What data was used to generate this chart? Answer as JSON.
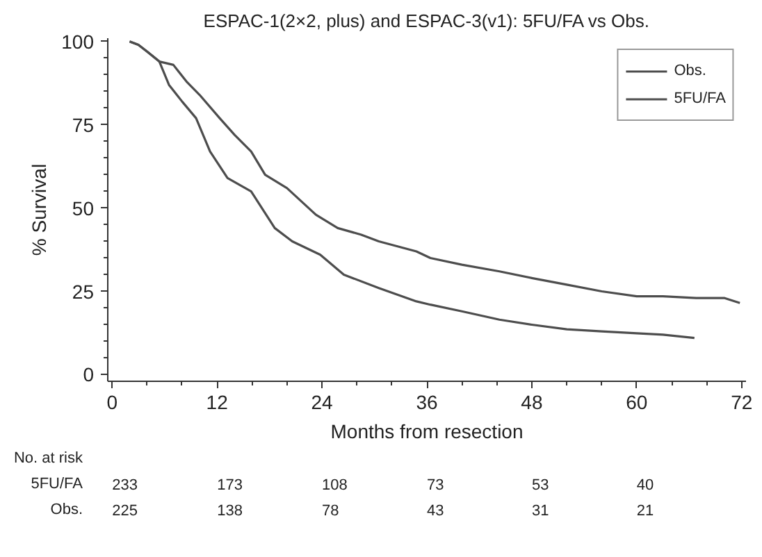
{
  "chart_data": {
    "type": "line",
    "title": "ESPAC-1(2×2, plus) and ESPAC-3(v1): 5FU/FA vs Obs.",
    "xlabel": "Months from resection",
    "ylabel": "% Survival",
    "xlim": [
      -0.5,
      72.5
    ],
    "ylim": [
      -2,
      101
    ],
    "xticks": [
      0,
      12,
      24,
      36,
      48,
      60,
      72
    ],
    "yticks": [
      0,
      25,
      50,
      75,
      100
    ],
    "grid": false,
    "legend": "top right",
    "marker": "none",
    "line_style": "solid",
    "series": [
      {
        "name": "Obs.",
        "color": "#4d4d4d",
        "x": [
          2,
          3,
          4,
          5.4,
          6.5,
          8,
          9.6,
          11.2,
          13.2,
          15.9,
          18.6,
          20.6,
          23.8,
          26.5,
          30.5,
          34.8,
          36.4,
          40,
          44.3,
          48,
          52,
          56,
          60,
          63,
          66.6
        ],
        "values": [
          100,
          99,
          97,
          94,
          87,
          82,
          77,
          67,
          59,
          55,
          44,
          40,
          36,
          30,
          26,
          22,
          21,
          19,
          16.5,
          15,
          13.6,
          13,
          12.4,
          12,
          11
        ]
      },
      {
        "name": "5FU/FA",
        "color": "#4d4d4d",
        "x": [
          2,
          3,
          4,
          5.4,
          7,
          8.5,
          10,
          12.3,
          14,
          15.9,
          17.5,
          20,
          23.3,
          25.8,
          28.5,
          30.5,
          34.8,
          36.4,
          40,
          44.3,
          48,
          52,
          56,
          60,
          63,
          66.8,
          70,
          71.8
        ],
        "values": [
          100,
          99,
          97,
          94,
          93,
          88,
          84,
          77,
          72,
          67,
          60,
          56,
          48,
          44,
          42,
          40,
          37,
          35,
          33,
          31,
          29,
          27,
          25,
          23.5,
          23.5,
          23,
          23,
          21.5
        ]
      }
    ],
    "annotations": [
      "No. at risk",
      "5FU/FA",
      "233",
      "173",
      "108",
      "73",
      "53",
      "40",
      "Obs.",
      "225",
      "138",
      "78",
      "43",
      "31",
      "21"
    ]
  }
}
